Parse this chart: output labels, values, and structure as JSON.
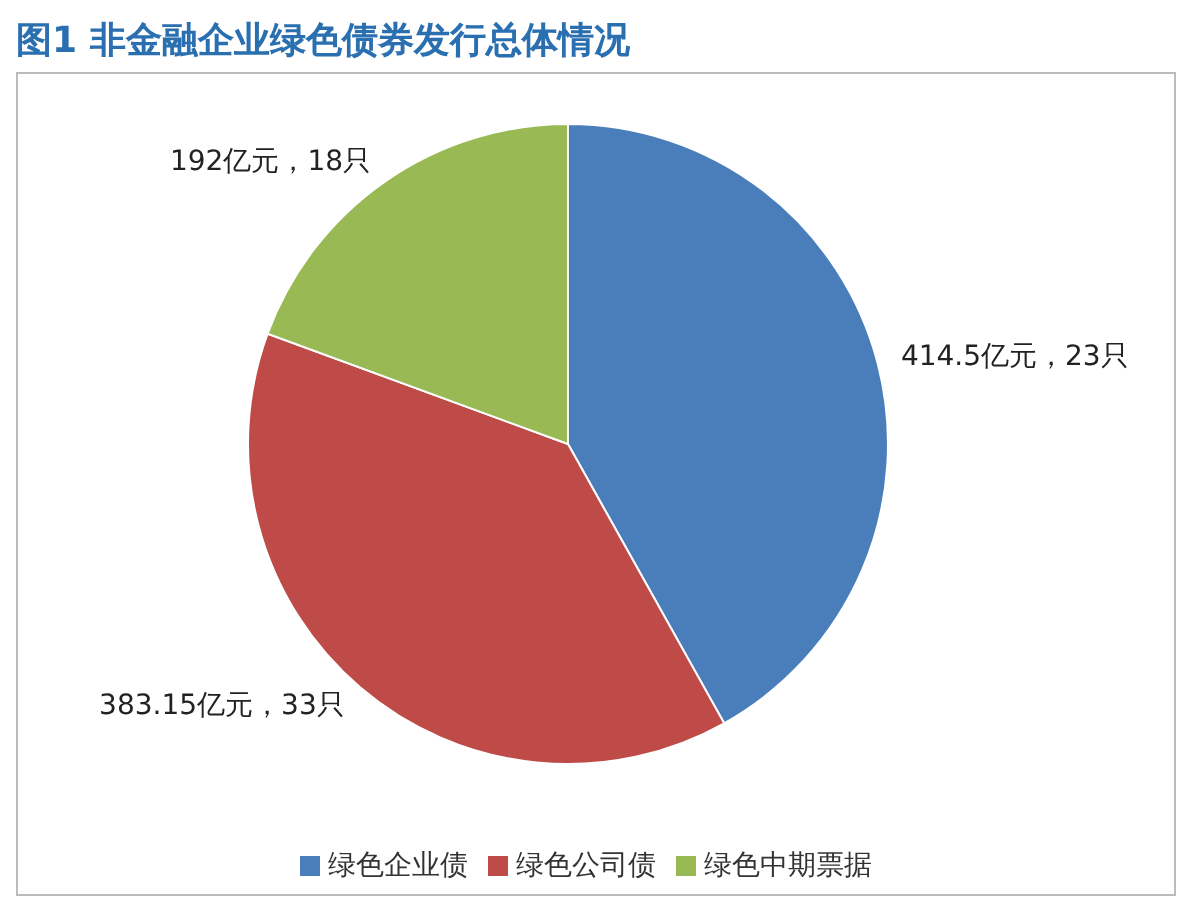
{
  "chart_data": {
    "type": "pie",
    "title": "图1 非金融企业绿色债券发行总体情况",
    "categories": [
      "绿色企业债",
      "绿色公司债",
      "绿色中期票据"
    ],
    "values": [
      414.5,
      383.15,
      192
    ],
    "colors": [
      "#4a7ebb",
      "#be4b48",
      "#98b954"
    ],
    "value_labels": [
      "414.5亿元，23只",
      "383.15亿元，33只",
      "192亿元，18只"
    ],
    "legend": "bottom"
  }
}
